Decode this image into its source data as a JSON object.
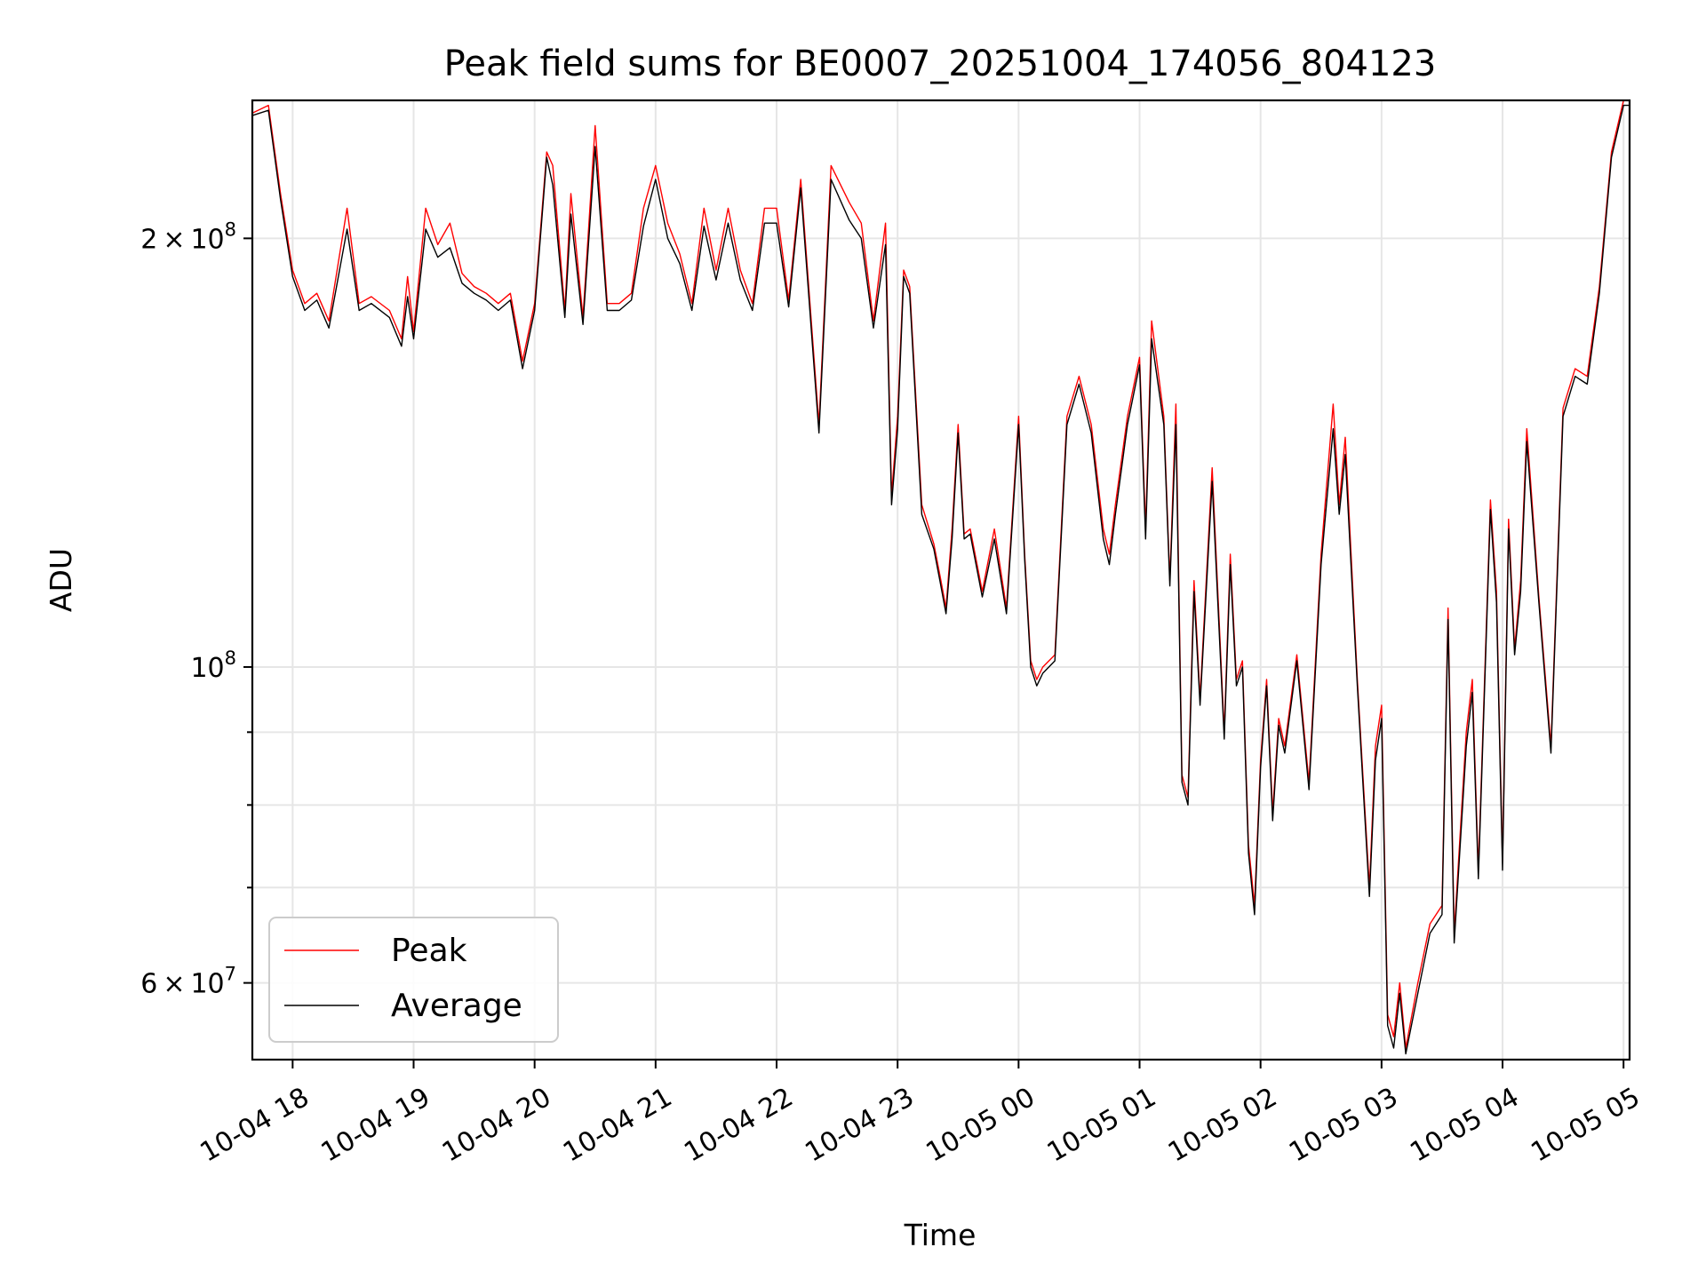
{
  "chart_data": {
    "type": "line",
    "title": "Peak field sums for BE0007_20251004_174056_804123",
    "xlabel": "Time",
    "ylabel": "ADU",
    "yscale": "log",
    "xlim_hours": [
      -0.333,
      11.05
    ],
    "ylim": [
      53000000,
      250000000
    ],
    "x_tick_labels": [
      "10-04 18",
      "10-04 19",
      "10-04 20",
      "10-04 21",
      "10-04 22",
      "10-04 23",
      "10-05 00",
      "10-05 01",
      "10-05 02",
      "10-05 03",
      "10-05 04",
      "10-05 05"
    ],
    "y_major_ticks": [
      {
        "value": 60000000,
        "mantissa": "6",
        "exponent": "7"
      },
      {
        "value": 100000000,
        "mantissa": "",
        "exponent": "8"
      },
      {
        "value": 200000000,
        "mantissa": "2",
        "exponent": "8"
      }
    ],
    "y_minor_ticks": [
      70000000,
      80000000,
      90000000
    ],
    "x_hours_from_1800": [
      -0.33,
      -0.2,
      -0.1,
      0.0,
      0.1,
      0.2,
      0.3,
      0.45,
      0.55,
      0.65,
      0.8,
      0.9,
      0.95,
      1.0,
      1.1,
      1.2,
      1.3,
      1.4,
      1.5,
      1.6,
      1.7,
      1.8,
      1.9,
      2.0,
      2.1,
      2.15,
      2.25,
      2.3,
      2.4,
      2.5,
      2.6,
      2.7,
      2.8,
      2.9,
      3.0,
      3.1,
      3.2,
      3.3,
      3.4,
      3.5,
      3.6,
      3.7,
      3.8,
      3.9,
      4.0,
      4.1,
      4.2,
      4.35,
      4.45,
      4.6,
      4.7,
      4.8,
      4.9,
      4.95,
      5.0,
      5.05,
      5.1,
      5.2,
      5.3,
      5.35,
      5.4,
      5.45,
      5.5,
      5.55,
      5.6,
      5.7,
      5.8,
      5.9,
      6.0,
      6.05,
      6.1,
      6.15,
      6.2,
      6.3,
      6.4,
      6.5,
      6.6,
      6.7,
      6.75,
      6.8,
      6.9,
      7.0,
      7.05,
      7.1,
      7.2,
      7.25,
      7.3,
      7.35,
      7.4,
      7.45,
      7.5,
      7.6,
      7.7,
      7.75,
      7.8,
      7.85,
      7.9,
      7.95,
      8.0,
      8.05,
      8.1,
      8.15,
      8.2,
      8.3,
      8.4,
      8.5,
      8.6,
      8.65,
      8.7,
      8.8,
      8.9,
      8.95,
      9.0,
      9.05,
      9.1,
      9.15,
      9.2,
      9.3,
      9.4,
      9.5,
      9.55,
      9.6,
      9.7,
      9.75,
      9.8,
      9.9,
      9.95,
      10.0,
      10.05,
      10.1,
      10.15,
      10.2,
      10.3,
      10.4,
      10.5,
      10.6,
      10.7,
      10.8,
      10.9,
      11.0,
      11.05
    ],
    "series": [
      {
        "name": "Peak",
        "color": "#ff0000",
        "values": [
          245000000,
          248000000,
          215000000,
          190000000,
          180000000,
          183000000,
          175000000,
          210000000,
          180000000,
          182000000,
          178000000,
          170000000,
          188000000,
          172000000,
          210000000,
          198000000,
          205000000,
          189000000,
          185000000,
          183000000,
          180000000,
          183000000,
          164000000,
          180000000,
          230000000,
          225000000,
          178000000,
          215000000,
          176000000,
          240000000,
          180000000,
          180000000,
          183000000,
          210000000,
          225000000,
          205000000,
          195000000,
          180000000,
          210000000,
          190000000,
          210000000,
          190000000,
          180000000,
          210000000,
          210000000,
          181000000,
          220000000,
          148000000,
          225000000,
          212000000,
          205000000,
          175000000,
          205000000,
          132000000,
          150000000,
          190000000,
          185000000,
          130000000,
          122000000,
          116000000,
          110000000,
          125000000,
          148000000,
          124000000,
          125000000,
          113000000,
          125000000,
          110000000,
          150000000,
          120000000,
          101000000,
          98000000,
          100000000,
          102000000,
          150000000,
          160000000,
          148000000,
          125000000,
          120000000,
          130000000,
          150000000,
          165000000,
          125000000,
          175000000,
          150000000,
          115000000,
          153000000,
          84000000,
          81000000,
          115000000,
          95000000,
          138000000,
          90000000,
          120000000,
          98000000,
          101000000,
          75000000,
          68000000,
          86000000,
          98000000,
          79000000,
          92000000,
          88000000,
          102000000,
          83000000,
          120000000,
          153000000,
          130000000,
          145000000,
          98000000,
          70000000,
          88000000,
          94000000,
          57000000,
          55000000,
          60000000,
          54000000,
          60000000,
          66000000,
          68000000,
          110000000,
          65000000,
          90000000,
          98000000,
          72000000,
          131000000,
          113000000,
          73000000,
          127000000,
          103000000,
          115000000,
          147000000,
          112000000,
          88000000,
          152000000,
          162000000,
          160000000,
          185000000,
          230000000,
          250000000,
          250000000
        ]
      },
      {
        "name": "Average",
        "color": "#000000",
        "values": [
          244000000,
          246000000,
          213000000,
          188000000,
          178000000,
          181000000,
          173000000,
          203000000,
          178000000,
          180000000,
          176000000,
          168000000,
          182000000,
          170000000,
          203000000,
          194000000,
          197000000,
          186000000,
          183000000,
          181000000,
          178000000,
          181000000,
          162000000,
          178000000,
          228000000,
          218000000,
          176000000,
          208000000,
          174000000,
          232000000,
          178000000,
          178000000,
          181000000,
          204000000,
          220000000,
          200000000,
          192000000,
          178000000,
          204000000,
          187000000,
          205000000,
          187000000,
          178000000,
          205000000,
          205000000,
          179000000,
          217000000,
          146000000,
          220000000,
          206000000,
          200000000,
          173000000,
          198000000,
          130000000,
          147000000,
          188000000,
          183000000,
          128000000,
          121000000,
          115000000,
          109000000,
          123000000,
          146000000,
          123000000,
          124000000,
          112000000,
          123000000,
          109000000,
          148000000,
          119000000,
          100000000,
          97000000,
          99000000,
          101000000,
          148000000,
          158000000,
          146000000,
          123000000,
          118000000,
          128000000,
          148000000,
          163000000,
          123000000,
          170000000,
          148000000,
          114000000,
          148000000,
          83000000,
          80000000,
          113000000,
          94000000,
          135000000,
          89000000,
          118000000,
          97000000,
          100000000,
          74000000,
          67000000,
          85000000,
          97000000,
          78000000,
          91000000,
          87000000,
          101000000,
          82000000,
          118000000,
          147000000,
          128000000,
          141000000,
          97000000,
          69000000,
          86000000,
          92000000,
          56000000,
          54000000,
          59000000,
          53500000,
          59000000,
          65000000,
          67000000,
          108000000,
          64000000,
          88000000,
          96000000,
          71000000,
          129000000,
          111000000,
          72000000,
          125000000,
          102000000,
          113000000,
          144000000,
          111000000,
          87000000,
          150000000,
          160000000,
          158000000,
          183000000,
          228000000,
          248000000,
          248000000
        ]
      }
    ],
    "legend": {
      "placement": "lower-left",
      "entries": [
        "Peak",
        "Average"
      ]
    },
    "grid": true
  }
}
